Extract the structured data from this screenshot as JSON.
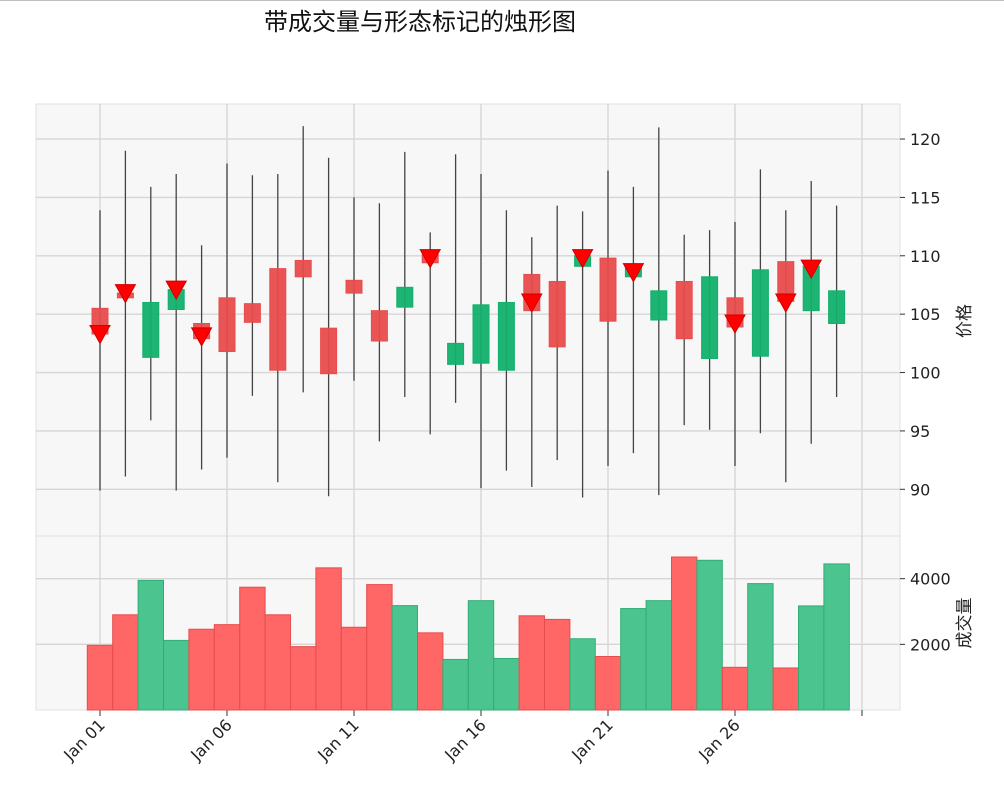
{
  "chart_data": {
    "type": "candlestick",
    "title": "带成交量与形态标记的烛形图",
    "colors": {
      "up": "#e84c4c",
      "down": "#12b06b",
      "marker": "#ff0000",
      "wick": "#444444",
      "background": "#f7f7f7",
      "grid": "#d6d6d6"
    },
    "dates": [
      "Jan 01",
      "Jan 02",
      "Jan 03",
      "Jan 04",
      "Jan 05",
      "Jan 06",
      "Jan 07",
      "Jan 08",
      "Jan 09",
      "Jan 10",
      "Jan 11",
      "Jan 12",
      "Jan 13",
      "Jan 14",
      "Jan 15",
      "Jan 16",
      "Jan 17",
      "Jan 18",
      "Jan 19",
      "Jan 20",
      "Jan 21",
      "Jan 22",
      "Jan 23",
      "Jan 24",
      "Jan 25",
      "Jan 26",
      "Jan 27",
      "Jan 28",
      "Jan 29",
      "Jan 30"
    ],
    "x_tick_labels": [
      "Jan 01",
      "Jan 06",
      "Jan 11",
      "Jan 16",
      "Jan 21",
      "Jan 26"
    ],
    "price": {
      "ylabel": "价格",
      "ylim": [
        86,
        123
      ],
      "yticks": [
        90,
        95,
        100,
        105,
        110,
        115,
        120
      ],
      "grid": true,
      "ohlc": [
        [
          103.3,
          113.9,
          89.9,
          105.5
        ],
        [
          106.4,
          119.0,
          91.1,
          106.8
        ],
        [
          106.0,
          115.9,
          95.9,
          101.3
        ],
        [
          107.1,
          117.0,
          89.9,
          105.4
        ],
        [
          102.9,
          110.9,
          91.7,
          104.2
        ],
        [
          101.8,
          117.9,
          92.7,
          106.4
        ],
        [
          104.3,
          116.9,
          98.0,
          105.9
        ],
        [
          100.2,
          117.0,
          90.6,
          108.9
        ],
        [
          108.2,
          121.1,
          98.3,
          109.6
        ],
        [
          99.9,
          118.4,
          89.4,
          103.8
        ],
        [
          106.8,
          115.0,
          99.3,
          107.9
        ],
        [
          102.7,
          114.5,
          94.1,
          105.3
        ],
        [
          107.3,
          118.9,
          97.9,
          105.6
        ],
        [
          109.4,
          112.0,
          94.7,
          110.1
        ],
        [
          102.5,
          118.7,
          97.4,
          100.7
        ],
        [
          105.8,
          117.0,
          90.1,
          100.8
        ],
        [
          106.0,
          113.9,
          91.6,
          100.2
        ],
        [
          105.3,
          111.6,
          90.2,
          108.4
        ],
        [
          102.2,
          114.3,
          92.5,
          107.8
        ],
        [
          110.0,
          113.8,
          89.3,
          109.1
        ],
        [
          104.4,
          117.3,
          92.0,
          109.8
        ],
        [
          109.1,
          115.9,
          93.1,
          108.2
        ],
        [
          107.0,
          121.0,
          89.5,
          104.5
        ],
        [
          102.9,
          111.8,
          95.5,
          107.8
        ],
        [
          108.2,
          112.2,
          95.1,
          101.2
        ],
        [
          103.9,
          112.9,
          92.0,
          106.4
        ],
        [
          108.8,
          117.4,
          94.8,
          101.4
        ],
        [
          106.1,
          113.9,
          90.6,
          109.5
        ],
        [
          109.1,
          116.4,
          93.9,
          105.3
        ],
        [
          107.0,
          114.3,
          97.9,
          104.2
        ]
      ],
      "pattern_markers": [
        {
          "date": "Jan 01",
          "price": 103.3
        },
        {
          "date": "Jan 02",
          "price": 106.8
        },
        {
          "date": "Jan 04",
          "price": 107.1
        },
        {
          "date": "Jan 05",
          "price": 103.1
        },
        {
          "date": "Jan 14",
          "price": 109.8
        },
        {
          "date": "Jan 18",
          "price": 106.0
        },
        {
          "date": "Jan 20",
          "price": 109.8
        },
        {
          "date": "Jan 22",
          "price": 108.6
        },
        {
          "date": "Jan 26",
          "price": 104.2
        },
        {
          "date": "Jan 28",
          "price": 106.0
        },
        {
          "date": "Jan 29",
          "price": 108.9
        }
      ]
    },
    "volume": {
      "ylabel": "成交量",
      "ylim": [
        0,
        5300
      ],
      "yticks": [
        2000,
        4000
      ],
      "values": [
        1970,
        2900,
        3950,
        2120,
        2460,
        2600,
        3740,
        2900,
        1930,
        4330,
        2520,
        3820,
        3180,
        2350,
        1540,
        3330,
        1570,
        2870,
        2760,
        2170,
        1630,
        3090,
        3330,
        4660,
        4560,
        1300,
        3850,
        1280,
        3170,
        4450
      ]
    }
  }
}
